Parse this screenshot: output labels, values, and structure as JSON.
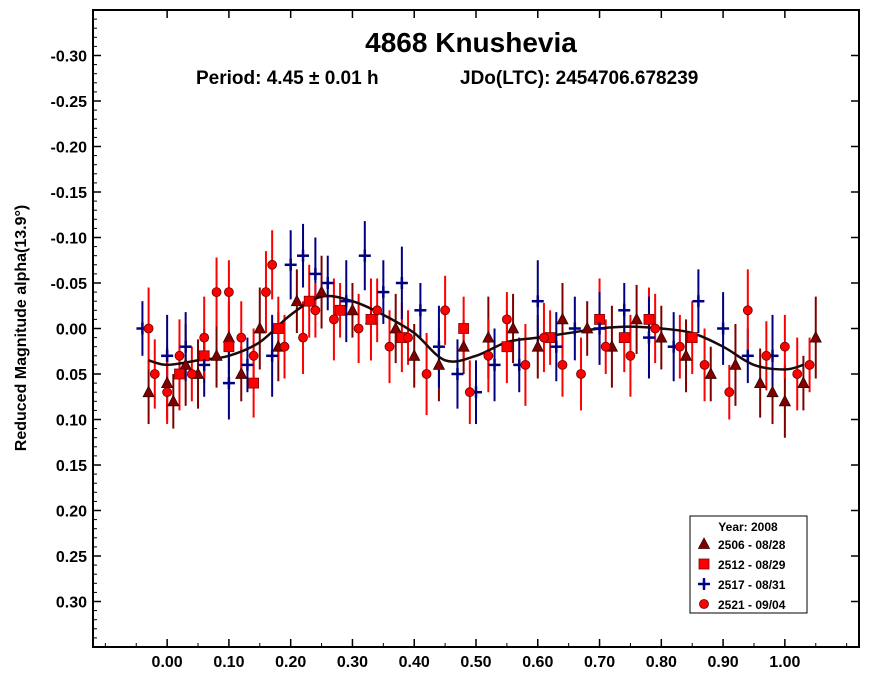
{
  "chart_data": {
    "type": "scatter",
    "title": "4868 Knushevia",
    "period_text": "Period: 4.45 ± 0.01 h",
    "epoch_text": "JDo(LTC): 2454706.678239",
    "xlabel": "",
    "ylabel": "Reduced Magnitude alpha(13.9°)",
    "xlim": [
      -0.12,
      1.12
    ],
    "ylim": [
      -0.35,
      0.35
    ],
    "y_inverted": true,
    "x_ticks": [
      0.0,
      0.1,
      0.2,
      0.3,
      0.4,
      0.5,
      0.6,
      0.7,
      0.8,
      0.9,
      1.0
    ],
    "x_tick_labels": [
      "0.00",
      "0.10",
      "0.20",
      "0.30",
      "0.40",
      "0.50",
      "0.60",
      "0.70",
      "0.80",
      "0.90",
      "1.00"
    ],
    "y_ticks": [
      -0.3,
      -0.25,
      -0.2,
      -0.15,
      -0.1,
      -0.05,
      0.0,
      0.05,
      0.1,
      0.15,
      0.2,
      0.25,
      0.3
    ],
    "y_tick_labels": [
      "-0.30",
      "-0.25",
      "-0.20",
      "-0.15",
      "-0.10",
      "-0.05",
      "0.00",
      "0.05",
      "0.10",
      "0.15",
      "0.20",
      "0.25",
      "0.30"
    ],
    "grid": false,
    "legend_position": "bottom-right",
    "legend_title": "Year: 2008",
    "fit_curve": {
      "x": [
        -0.03,
        0.0,
        0.05,
        0.1,
        0.15,
        0.2,
        0.25,
        0.3,
        0.35,
        0.4,
        0.45,
        0.5,
        0.55,
        0.6,
        0.65,
        0.7,
        0.75,
        0.8,
        0.85,
        0.9,
        0.95,
        1.0,
        1.03
      ],
      "y": [
        0.035,
        0.04,
        0.035,
        0.03,
        0.015,
        -0.015,
        -0.035,
        -0.03,
        -0.015,
        0.005,
        0.035,
        0.03,
        0.015,
        0.01,
        0.005,
        0.0,
        -0.002,
        0.0,
        0.005,
        0.02,
        0.04,
        0.045,
        0.04
      ]
    },
    "series": [
      {
        "name": "2506 - 08/28",
        "color": "#800000",
        "marker": "triangle",
        "x": [
          -0.03,
          0.0,
          0.01,
          0.03,
          0.05,
          0.08,
          0.1,
          0.12,
          0.15,
          0.18,
          0.21,
          0.25,
          0.3,
          0.33,
          0.37,
          0.4,
          0.44,
          0.48,
          0.52,
          0.56,
          0.6,
          0.64,
          0.68,
          0.72,
          0.76,
          0.8,
          0.84,
          0.88,
          0.92,
          0.96,
          0.98,
          1.0,
          1.03,
          1.05
        ],
        "y": [
          0.07,
          0.06,
          0.08,
          0.04,
          0.05,
          0.03,
          0.01,
          0.05,
          0.0,
          0.02,
          -0.03,
          -0.04,
          -0.02,
          -0.01,
          0.0,
          0.03,
          0.04,
          0.02,
          0.01,
          0.0,
          0.02,
          -0.01,
          0.0,
          0.02,
          -0.01,
          0.01,
          0.03,
          0.05,
          0.04,
          0.06,
          0.07,
          0.08,
          0.06,
          0.01
        ]
      },
      {
        "name": "2512 - 08/29",
        "color": "#ff0000",
        "marker": "square",
        "x": [
          0.02,
          0.06,
          0.1,
          0.14,
          0.18,
          0.23,
          0.28,
          0.33,
          0.38,
          0.48,
          0.55,
          0.62,
          0.7,
          0.74,
          0.78,
          0.85
        ],
        "y": [
          0.05,
          0.03,
          0.02,
          0.06,
          0.0,
          -0.03,
          -0.02,
          -0.01,
          0.01,
          0.0,
          0.02,
          0.01,
          -0.01,
          0.01,
          -0.01,
          0.01
        ]
      },
      {
        "name": "2517 - 08/31",
        "color": "#000080",
        "marker": "plus",
        "x": [
          -0.04,
          0.0,
          0.03,
          0.06,
          0.1,
          0.13,
          0.17,
          0.2,
          0.22,
          0.24,
          0.26,
          0.29,
          0.32,
          0.35,
          0.38,
          0.41,
          0.44,
          0.47,
          0.5,
          0.53,
          0.57,
          0.6,
          0.63,
          0.66,
          0.7,
          0.74,
          0.78,
          0.82,
          0.86,
          0.9,
          0.94,
          0.98
        ],
        "y": [
          0.0,
          0.03,
          0.02,
          0.04,
          0.06,
          0.04,
          0.03,
          -0.07,
          -0.08,
          -0.06,
          -0.05,
          -0.03,
          -0.08,
          -0.04,
          -0.05,
          -0.02,
          0.02,
          0.05,
          0.07,
          0.04,
          0.04,
          -0.03,
          0.02,
          0.0,
          0.0,
          -0.02,
          0.01,
          0.02,
          -0.03,
          0.0,
          0.03,
          0.03
        ]
      },
      {
        "name": "2521 - 09/04",
        "color": "#ff0000",
        "marker": "circle",
        "x": [
          -0.03,
          -0.02,
          0.0,
          0.02,
          0.04,
          0.06,
          0.08,
          0.1,
          0.12,
          0.14,
          0.16,
          0.17,
          0.19,
          0.22,
          0.24,
          0.27,
          0.31,
          0.34,
          0.36,
          0.39,
          0.42,
          0.45,
          0.49,
          0.52,
          0.55,
          0.58,
          0.61,
          0.64,
          0.67,
          0.71,
          0.75,
          0.79,
          0.83,
          0.87,
          0.91,
          0.94,
          0.97,
          1.0,
          1.02,
          1.04
        ],
        "y": [
          0.0,
          0.05,
          0.07,
          0.03,
          0.05,
          0.01,
          -0.04,
          -0.04,
          0.01,
          0.03,
          -0.04,
          -0.07,
          0.02,
          0.01,
          -0.02,
          -0.01,
          0.0,
          -0.02,
          0.02,
          0.01,
          0.05,
          -0.02,
          0.07,
          0.03,
          -0.01,
          0.04,
          0.01,
          0.04,
          0.05,
          0.02,
          0.03,
          0.0,
          0.02,
          0.04,
          0.07,
          -0.02,
          0.03,
          0.02,
          0.05,
          0.04
        ]
      }
    ]
  }
}
